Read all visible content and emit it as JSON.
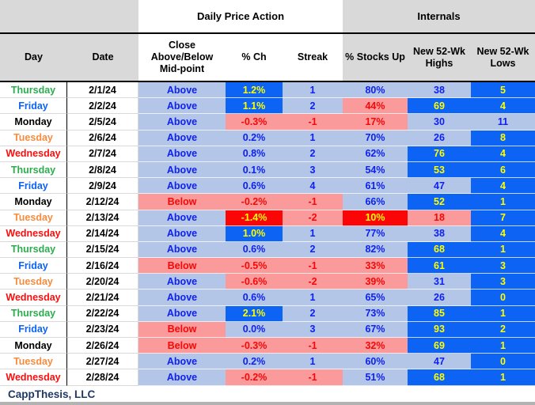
{
  "title_groups": {
    "daily_price_action": "Daily Price Action",
    "internals": "Internals"
  },
  "header_labels": {
    "day": "Day",
    "date": "Date",
    "close": "Close Above/Below Mid-point",
    "pct_ch": "% Ch",
    "streak": "Streak",
    "stocks_up": "% Stocks Up",
    "highs": "New 52-Wk Highs",
    "lows": "New 52-Wk Lows"
  },
  "chart_data": {
    "type": "table",
    "title": "Daily Price Action / Internals",
    "columns": [
      "Day",
      "Date",
      "Close Above/Below Mid-point",
      "% Ch",
      "Streak",
      "% Stocks Up",
      "New 52-Wk Highs",
      "New 52-Wk Lows"
    ],
    "rows": [
      [
        "Thursday",
        "2/1/24",
        "Above",
        "1.2%",
        "1",
        "80%",
        "38",
        "5"
      ],
      [
        "Friday",
        "2/2/24",
        "Above",
        "1.1%",
        "2",
        "44%",
        "69",
        "4"
      ],
      [
        "Monday",
        "2/5/24",
        "Above",
        "-0.3%",
        "-1",
        "17%",
        "30",
        "11"
      ],
      [
        "Tuesday",
        "2/6/24",
        "Above",
        "0.2%",
        "1",
        "70%",
        "26",
        "8"
      ],
      [
        "Wednesday",
        "2/7/24",
        "Above",
        "0.8%",
        "2",
        "62%",
        "76",
        "4"
      ],
      [
        "Thursday",
        "2/8/24",
        "Above",
        "0.1%",
        "3",
        "54%",
        "53",
        "6"
      ],
      [
        "Friday",
        "2/9/24",
        "Above",
        "0.6%",
        "4",
        "61%",
        "47",
        "4"
      ],
      [
        "Monday",
        "2/12/24",
        "Below",
        "-0.2%",
        "-1",
        "66%",
        "52",
        "1"
      ],
      [
        "Tuesday",
        "2/13/24",
        "Above",
        "-1.4%",
        "-2",
        "10%",
        "18",
        "7"
      ],
      [
        "Wednesday",
        "2/14/24",
        "Above",
        "1.0%",
        "1",
        "77%",
        "38",
        "4"
      ],
      [
        "Thursday",
        "2/15/24",
        "Above",
        "0.6%",
        "2",
        "82%",
        "68",
        "1"
      ],
      [
        "Friday",
        "2/16/24",
        "Below",
        "-0.5%",
        "-1",
        "33%",
        "61",
        "3"
      ],
      [
        "Tuesday",
        "2/20/24",
        "Above",
        "-0.6%",
        "-2",
        "39%",
        "31",
        "3"
      ],
      [
        "Wednesday",
        "2/21/24",
        "Above",
        "0.6%",
        "1",
        "65%",
        "26",
        "0"
      ],
      [
        "Thursday",
        "2/22/24",
        "Above",
        "2.1%",
        "2",
        "73%",
        "85",
        "1"
      ],
      [
        "Friday",
        "2/23/24",
        "Below",
        "0.0%",
        "3",
        "67%",
        "93",
        "2"
      ],
      [
        "Monday",
        "2/26/24",
        "Below",
        "-0.3%",
        "-1",
        "32%",
        "69",
        "1"
      ],
      [
        "Tuesday",
        "2/27/24",
        "Above",
        "0.2%",
        "1",
        "60%",
        "47",
        "0"
      ],
      [
        "Wednesday",
        "2/28/24",
        "Above",
        "-0.2%",
        "-1",
        "51%",
        "68",
        "1"
      ]
    ]
  },
  "row_styles": [
    [
      "lb",
      "bb",
      "lb",
      "lb",
      "lb",
      "bb"
    ],
    [
      "lb",
      "bb",
      "lb",
      "pk",
      "bb",
      "bb"
    ],
    [
      "lb",
      "pk",
      "pk",
      "pk",
      "lb",
      "lb"
    ],
    [
      "lb",
      "lb",
      "lb",
      "lb",
      "lb",
      "bb"
    ],
    [
      "lb",
      "lb",
      "lb",
      "lb",
      "bb",
      "bb"
    ],
    [
      "lb",
      "lb",
      "lb",
      "lb",
      "bb",
      "bb"
    ],
    [
      "lb",
      "lb",
      "lb",
      "lb",
      "lb",
      "bb"
    ],
    [
      "pk",
      "pk",
      "pk",
      "lb",
      "bb",
      "bb"
    ],
    [
      "lb",
      "rd",
      "pk",
      "rd",
      "pk",
      "bb"
    ],
    [
      "lb",
      "bb",
      "lb",
      "lb",
      "lb",
      "bb"
    ],
    [
      "lb",
      "lb",
      "lb",
      "lb",
      "bb",
      "bb"
    ],
    [
      "pk",
      "pk",
      "pk",
      "pk",
      "bb",
      "bb"
    ],
    [
      "lb",
      "pk",
      "pk",
      "pk",
      "lb",
      "bb"
    ],
    [
      "lb",
      "lb",
      "lb",
      "lb",
      "lb",
      "bb"
    ],
    [
      "lb",
      "bb",
      "lb",
      "lb",
      "bb",
      "bb"
    ],
    [
      "pk",
      "lb",
      "lb",
      "lb",
      "bb",
      "bb"
    ],
    [
      "pk",
      "pk",
      "pk",
      "pk",
      "bb",
      "bb"
    ],
    [
      "lb",
      "lb",
      "lb",
      "lb",
      "lb",
      "bb"
    ],
    [
      "lb",
      "pk",
      "pk",
      "lb",
      "bb",
      "bb"
    ]
  ],
  "style_palette": {
    "lb": {
      "bg": "#b3c6e7",
      "fg": "#0d21f0"
    },
    "bb": {
      "bg": "#0c63f4",
      "fg": "#ffff00"
    },
    "pk": {
      "bg": "#fa9a9a",
      "fg": "#f70808"
    },
    "rd": {
      "bg": "#fa0606",
      "fg": "#ffff00"
    }
  },
  "day_colors": {
    "Monday": "#000000",
    "Tuesday": "#f68c3e",
    "Wednesday": "#fb0d0d",
    "Thursday": "#2bad4e",
    "Friday": "#0c63f4"
  },
  "footer": {
    "company": "CappThesis, LLC"
  }
}
